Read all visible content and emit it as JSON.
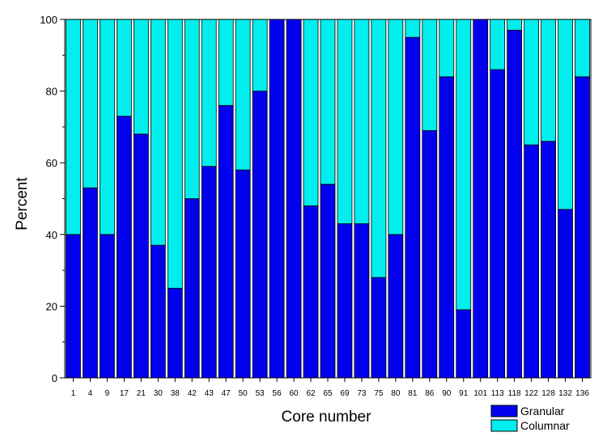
{
  "chart_data": {
    "type": "bar",
    "stacked": true,
    "xlabel": "Core number",
    "ylabel": "Percent",
    "ylim": [
      0,
      100
    ],
    "yticks": [
      0,
      20,
      40,
      60,
      80,
      100
    ],
    "grid": false,
    "legend_position": "bottom-right",
    "categories": [
      "1",
      "4",
      "9",
      "17",
      "21",
      "30",
      "38",
      "42",
      "43",
      "47",
      "50",
      "53",
      "56",
      "60",
      "62",
      "65",
      "69",
      "73",
      "75",
      "80",
      "81",
      "86",
      "90",
      "91",
      "101",
      "113",
      "118",
      "122",
      "128",
      "132",
      "136"
    ],
    "series": [
      {
        "name": "Granular",
        "color": "#0000ee",
        "values": [
          40,
          53,
          40,
          73,
          68,
          37,
          25,
          50,
          59,
          76,
          58,
          80,
          100,
          100,
          48,
          54,
          43,
          43,
          28,
          40,
          95,
          69,
          84,
          19,
          100,
          86,
          97,
          65,
          66,
          47,
          84
        ]
      },
      {
        "name": "Columnar",
        "color": "#00eeee",
        "values": [
          60,
          47,
          60,
          27,
          32,
          63,
          75,
          50,
          41,
          24,
          42,
          20,
          0,
          0,
          52,
          46,
          57,
          57,
          72,
          60,
          5,
          31,
          16,
          81,
          0,
          14,
          3,
          35,
          34,
          53,
          16
        ]
      }
    ]
  }
}
